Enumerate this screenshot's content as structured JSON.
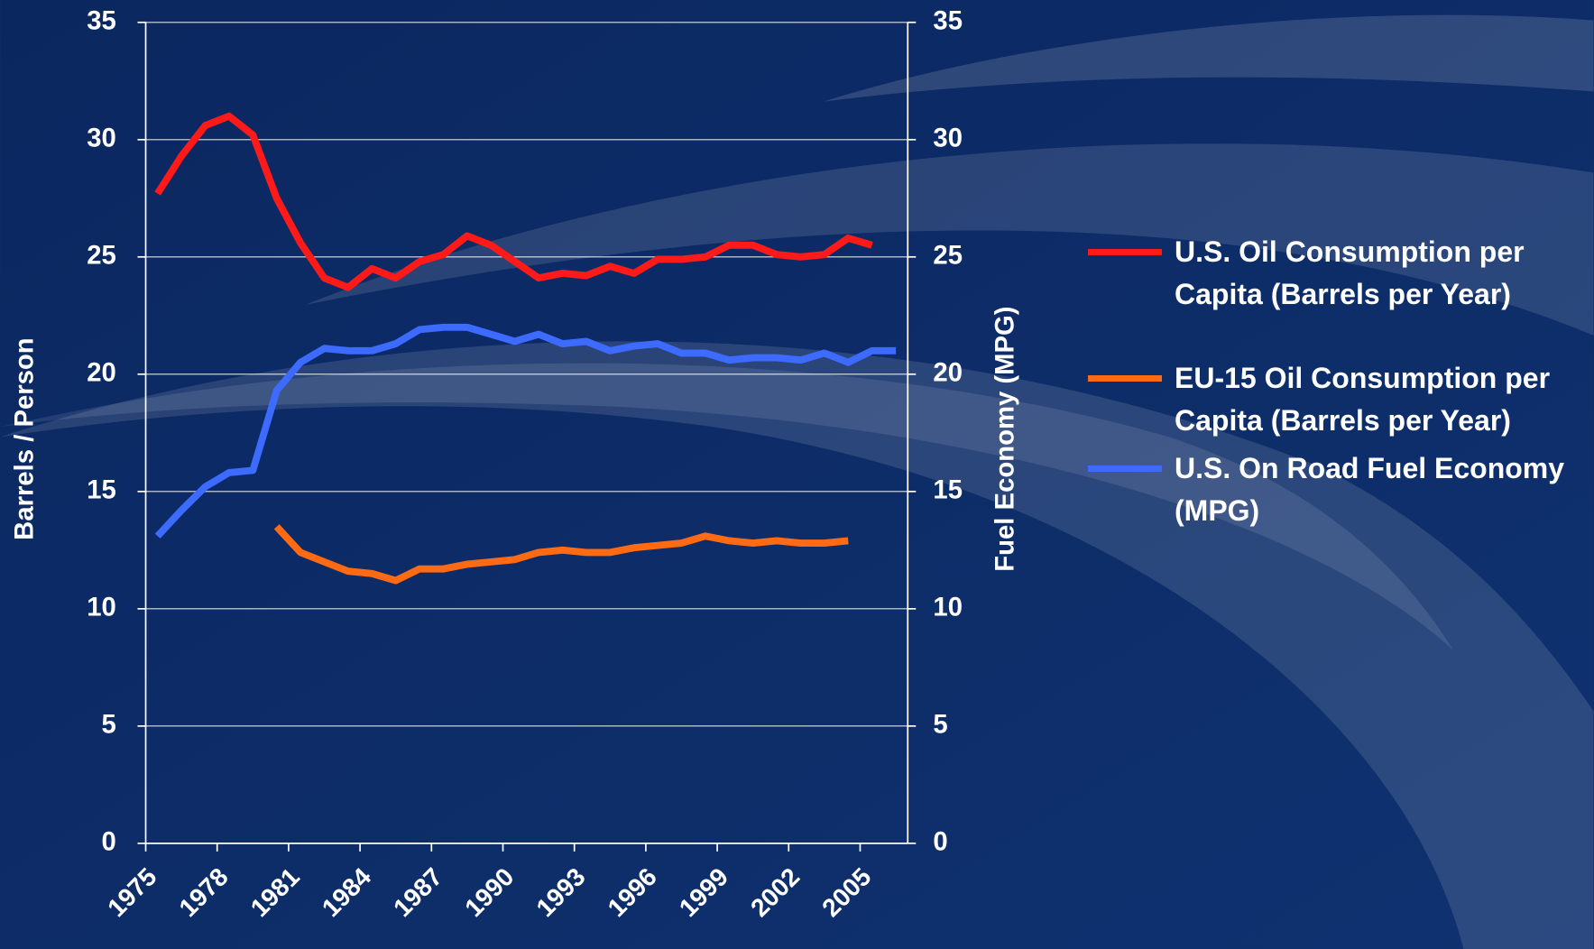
{
  "chart_data": {
    "type": "line",
    "y_label": "Barrels / Person",
    "y2_label": "Fuel Economy (MPG)",
    "categories": [
      "1975",
      null,
      null,
      "1978",
      null,
      null,
      "1981",
      null,
      null,
      "1984",
      null,
      null,
      "1987",
      null,
      null,
      "1990",
      null,
      null,
      "1993",
      null,
      null,
      "1996",
      null,
      null,
      "1999",
      null,
      null,
      "2002",
      null,
      null,
      "2005",
      null
    ],
    "series": [
      {
        "name": "U.S. Oil Consumption per Capita (Barrels per Year)",
        "color": "#ff1a1a",
        "values": [
          27.7,
          29.3,
          30.6,
          31.0,
          30.2,
          27.5,
          25.6,
          24.1,
          23.7,
          24.5,
          24.1,
          24.8,
          25.1,
          25.9,
          25.5,
          24.8,
          24.1,
          24.3,
          24.2,
          24.6,
          24.3,
          24.9,
          24.9,
          25.0,
          25.5,
          25.5,
          25.1,
          25.0,
          25.1,
          25.8,
          25.5,
          null
        ]
      },
      {
        "name": "EU-15 Oil Consumption per Capita (Barrels per Year)",
        "color": "#ff6a13",
        "values": [
          null,
          null,
          null,
          null,
          null,
          13.5,
          12.4,
          12.0,
          11.6,
          11.5,
          11.2,
          11.7,
          11.7,
          11.9,
          12.0,
          12.1,
          12.4,
          12.5,
          12.4,
          12.4,
          12.6,
          12.7,
          12.8,
          13.1,
          12.9,
          12.8,
          12.9,
          12.8,
          12.8,
          12.9,
          null,
          null
        ]
      },
      {
        "name": "U.S. On Road Fuel Economy (MPG)",
        "color": "#3d6bff",
        "axis": "y2",
        "values": [
          13.1,
          14.2,
          15.2,
          15.8,
          15.9,
          19.3,
          20.5,
          21.1,
          21.0,
          21.0,
          21.3,
          21.9,
          22.0,
          22.0,
          21.7,
          21.4,
          21.7,
          21.3,
          21.4,
          21.0,
          21.2,
          21.3,
          20.9,
          20.9,
          20.6,
          20.7,
          20.7,
          20.6,
          20.9,
          20.5,
          21.0,
          21.0
        ]
      }
    ],
    "ylim": [
      0,
      35
    ],
    "yticks": [
      0,
      5,
      10,
      15,
      20,
      25,
      30,
      35
    ],
    "y2lim": [
      0,
      35
    ],
    "y2ticks": [
      0,
      5,
      10,
      15,
      20,
      25,
      30,
      35
    ],
    "grid": true,
    "legend": "right"
  }
}
